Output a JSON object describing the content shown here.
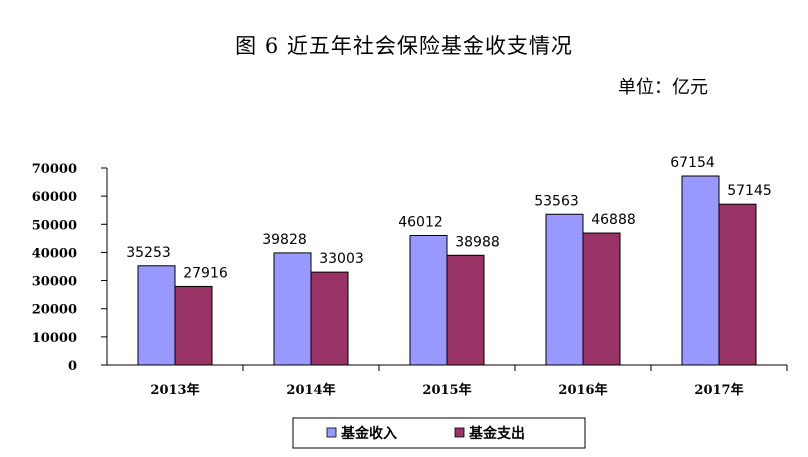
{
  "title": "图 6    近五年社会保险基金收支情况",
  "unit": "单位：亿元",
  "colors": {
    "income": "#9999ff",
    "expense": "#993366",
    "axis": "#000000"
  },
  "chart_data": {
    "type": "bar",
    "categories": [
      "2013年",
      "2014年",
      "2015年",
      "2016年",
      "2017年"
    ],
    "series": [
      {
        "name": "基金收入",
        "values": [
          35253,
          39828,
          46012,
          53563,
          67154
        ]
      },
      {
        "name": "基金支出",
        "values": [
          27916,
          33003,
          38988,
          46888,
          57145
        ]
      }
    ],
    "ylim": [
      0,
      70000
    ],
    "yticks": [
      "0",
      "10000",
      "20000",
      "30000",
      "40000",
      "50000",
      "60000",
      "70000"
    ],
    "grid": false,
    "legend": "bottom"
  }
}
